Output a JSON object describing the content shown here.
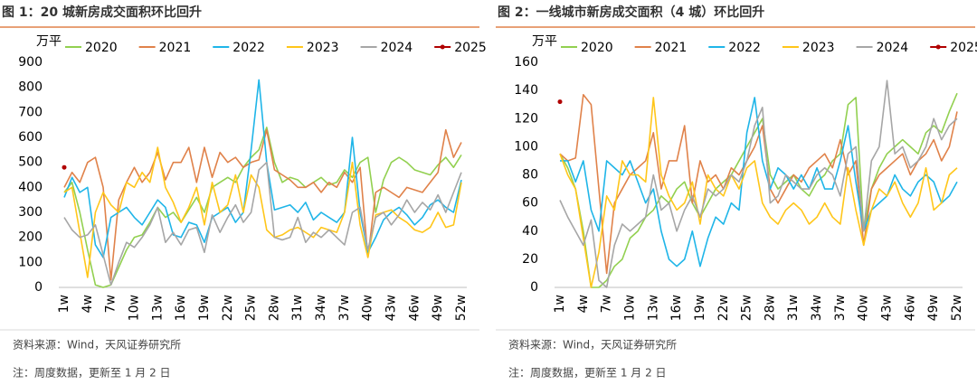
{
  "chart_data": [
    {
      "type": "line",
      "title": "图 1：20 城新房成交面积环比回升",
      "y_unit": "万平",
      "categories": [
        "1w",
        null,
        null,
        "4w",
        null,
        null,
        "7w",
        null,
        null,
        "10w",
        null,
        null,
        "13w",
        null,
        null,
        "16w",
        null,
        null,
        "19w",
        null,
        null,
        "22w",
        null,
        null,
        "25w",
        null,
        null,
        "28w",
        null,
        null,
        "31w",
        null,
        null,
        "34w",
        null,
        null,
        "37w",
        null,
        null,
        "40w",
        null,
        null,
        "43w",
        null,
        null,
        "46w",
        null,
        null,
        "49w",
        null,
        null,
        "52w"
      ],
      "ylim": [
        0,
        900
      ],
      "yticks": [
        0,
        100,
        200,
        300,
        400,
        500,
        600,
        700,
        800,
        900
      ],
      "grid": false,
      "legend": "top",
      "series": [
        {
          "name": "2020",
          "color": "#92d050",
          "values": [
            380,
            420,
            300,
            150,
            10,
            0,
            10,
            80,
            150,
            200,
            210,
            260,
            320,
            280,
            300,
            260,
            310,
            360,
            300,
            400,
            420,
            440,
            420,
            480,
            520,
            550,
            640,
            500,
            420,
            440,
            430,
            400,
            420,
            440,
            410,
            420,
            470,
            440,
            500,
            520,
            300,
            430,
            500,
            520,
            500,
            470,
            460,
            450,
            490,
            520,
            480,
            530
          ]
        },
        {
          "name": "2021",
          "color": "#e0824a",
          "values": [
            400,
            460,
            420,
            500,
            520,
            400,
            30,
            350,
            420,
            480,
            420,
            460,
            540,
            430,
            500,
            500,
            560,
            420,
            560,
            440,
            540,
            500,
            520,
            480,
            500,
            510,
            630,
            470,
            450,
            430,
            400,
            400,
            420,
            380,
            420,
            400,
            460,
            420,
            480,
            120,
            380,
            400,
            380,
            360,
            400,
            390,
            380,
            420,
            460,
            630,
            520,
            580
          ]
        },
        {
          "name": "2022",
          "color": "#1fb5e8",
          "values": [
            360,
            440,
            380,
            400,
            170,
            120,
            280,
            300,
            320,
            280,
            250,
            300,
            350,
            320,
            210,
            200,
            260,
            250,
            180,
            280,
            300,
            320,
            260,
            300,
            550,
            830,
            500,
            310,
            320,
            330,
            300,
            340,
            270,
            300,
            280,
            260,
            300,
            600,
            300,
            140,
            200,
            270,
            300,
            320,
            290,
            250,
            280,
            330,
            350,
            320,
            300,
            430
          ]
        },
        {
          "name": "2023",
          "color": "#ffc61a",
          "values": [
            380,
            400,
            220,
            40,
            300,
            380,
            330,
            300,
            420,
            400,
            460,
            420,
            560,
            400,
            340,
            260,
            320,
            400,
            250,
            420,
            300,
            330,
            450,
            300,
            450,
            400,
            230,
            200,
            210,
            230,
            240,
            220,
            200,
            240,
            230,
            220,
            300,
            500,
            250,
            120,
            290,
            300,
            310,
            280,
            260,
            230,
            220,
            240,
            300,
            240,
            250,
            420
          ]
        },
        {
          "name": "2024",
          "color": "#a6a6a6",
          "values": [
            280,
            230,
            200,
            210,
            250,
            130,
            10,
            100,
            180,
            160,
            200,
            250,
            320,
            180,
            220,
            170,
            230,
            240,
            140,
            290,
            220,
            280,
            330,
            260,
            300,
            470,
            500,
            200,
            190,
            200,
            280,
            180,
            220,
            200,
            230,
            200,
            170,
            300,
            320,
            150,
            280,
            300,
            250,
            290,
            350,
            300,
            340,
            310,
            370,
            300,
            380,
            460
          ]
        },
        {
          "name": "2025",
          "color": "#b00000",
          "values": [
            480,
            null,
            null,
            null,
            null,
            null,
            null,
            null,
            null,
            null,
            null,
            null,
            null,
            null,
            null,
            null,
            null,
            null,
            null,
            null,
            null,
            null,
            null,
            null,
            null,
            null,
            null,
            null,
            null,
            null,
            null,
            null,
            null,
            null,
            null,
            null,
            null,
            null,
            null,
            null,
            null,
            null,
            null,
            null,
            null,
            null,
            null,
            null,
            null,
            null,
            null,
            null
          ]
        }
      ],
      "source": "资料来源：Wind，天风证券研究所",
      "note": "注：周度数据，更新至 1 月 2 日"
    },
    {
      "type": "line",
      "title": "图 2：一线城市新房成交面积（4 城）环比回升",
      "y_unit": "万平",
      "categories": [
        "1w",
        null,
        null,
        "4w",
        null,
        null,
        "7w",
        null,
        null,
        "10w",
        null,
        null,
        "13w",
        null,
        null,
        "16w",
        null,
        null,
        "19w",
        null,
        null,
        "22w",
        null,
        null,
        "25w",
        null,
        null,
        "28w",
        null,
        null,
        "31w",
        null,
        null,
        "34w",
        null,
        null,
        "37w",
        null,
        null,
        "40w",
        null,
        null,
        "43w",
        null,
        null,
        "46w",
        null,
        null,
        "49w",
        null,
        null,
        "52w"
      ],
      "ylim": [
        0,
        160
      ],
      "yticks": [
        0,
        20,
        40,
        60,
        80,
        100,
        120,
        140,
        160
      ],
      "grid": false,
      "legend": "top",
      "series": [
        {
          "name": "2020",
          "color": "#92d050",
          "values": [
            95,
            85,
            70,
            40,
            0,
            0,
            5,
            15,
            20,
            35,
            40,
            50,
            55,
            65,
            60,
            70,
            75,
            60,
            50,
            60,
            70,
            75,
            80,
            90,
            100,
            110,
            120,
            80,
            70,
            75,
            80,
            70,
            65,
            75,
            80,
            90,
            95,
            130,
            135,
            40,
            70,
            85,
            95,
            100,
            105,
            100,
            95,
            110,
            115,
            110,
            125,
            138
          ]
        },
        {
          "name": "2021",
          "color": "#e0824a",
          "values": [
            95,
            90,
            92,
            137,
            130,
            70,
            10,
            60,
            70,
            80,
            85,
            90,
            110,
            70,
            90,
            90,
            115,
            60,
            90,
            75,
            80,
            70,
            85,
            80,
            90,
            100,
            115,
            70,
            60,
            70,
            80,
            75,
            85,
            90,
            95,
            85,
            105,
            80,
            90,
            30,
            70,
            80,
            85,
            90,
            95,
            80,
            90,
            95,
            105,
            90,
            100,
            125
          ]
        },
        {
          "name": "2022",
          "color": "#1fb5e8",
          "values": [
            90,
            90,
            75,
            90,
            55,
            40,
            90,
            85,
            80,
            90,
            75,
            60,
            70,
            40,
            20,
            15,
            20,
            40,
            15,
            35,
            50,
            45,
            60,
            55,
            110,
            135,
            90,
            70,
            85,
            80,
            70,
            80,
            70,
            85,
            70,
            70,
            90,
            115,
            75,
            40,
            55,
            60,
            65,
            80,
            70,
            65,
            75,
            80,
            75,
            60,
            65,
            75
          ]
        },
        {
          "name": "2023",
          "color": "#ffc61a",
          "values": [
            95,
            80,
            70,
            35,
            0,
            25,
            65,
            55,
            90,
            80,
            80,
            75,
            135,
            80,
            65,
            55,
            60,
            75,
            45,
            80,
            70,
            65,
            80,
            70,
            85,
            90,
            60,
            50,
            45,
            55,
            60,
            55,
            45,
            50,
            60,
            50,
            45,
            85,
            55,
            30,
            55,
            70,
            65,
            75,
            60,
            50,
            60,
            85,
            55,
            60,
            80,
            85
          ]
        },
        {
          "name": "2024",
          "color": "#a6a6a6",
          "values": [
            62,
            50,
            40,
            30,
            48,
            5,
            0,
            30,
            45,
            40,
            45,
            50,
            80,
            55,
            60,
            40,
            55,
            65,
            50,
            70,
            65,
            70,
            80,
            75,
            90,
            115,
            128,
            60,
            65,
            80,
            75,
            70,
            70,
            80,
            85,
            80,
            65,
            95,
            100,
            40,
            90,
            100,
            147,
            95,
            100,
            85,
            90,
            100,
            120,
            105,
            115,
            120
          ]
        },
        {
          "name": "2025",
          "color": "#b00000",
          "values": [
            132,
            null,
            null,
            null,
            null,
            null,
            null,
            null,
            null,
            null,
            null,
            null,
            null,
            null,
            null,
            null,
            null,
            null,
            null,
            null,
            null,
            null,
            null,
            null,
            null,
            null,
            null,
            null,
            null,
            null,
            null,
            null,
            null,
            null,
            null,
            null,
            null,
            null,
            null,
            null,
            null,
            null,
            null,
            null,
            null,
            null,
            null,
            null,
            null,
            null,
            null,
            null
          ]
        }
      ],
      "source": "资料来源：Wind，天风证券研究所",
      "note": "注：周度数据，更新至 1 月 2 日"
    }
  ]
}
